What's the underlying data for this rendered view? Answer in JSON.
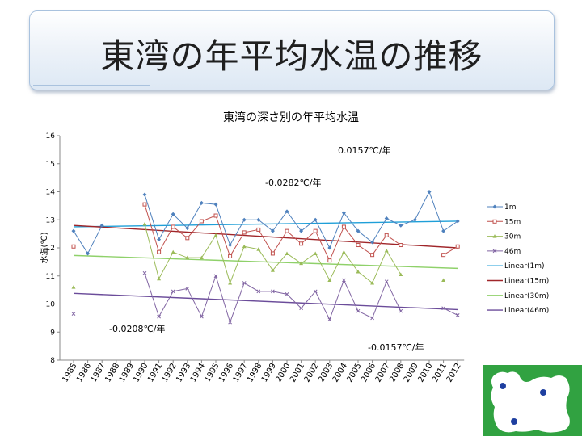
{
  "slide": {
    "title": "東湾の年平均水温の推移"
  },
  "colors": {
    "s1m": "#4f81bd",
    "s15m": "#c0504d",
    "s30m": "#9bbb59",
    "s46m": "#8064a2",
    "l1m": "#1f9fd8",
    "l15m": "#a0262a",
    "l30m": "#8fd16a",
    "l46m": "#6b4c9a"
  },
  "chart_data": {
    "type": "line",
    "title": "東湾の深さ別の年平均水温",
    "ylabel": "水温(℃)",
    "xlabel": "",
    "ylim": [
      8,
      16
    ],
    "yticks": [
      "16",
      "15",
      "14",
      "13",
      "12",
      "11",
      "10",
      "9",
      "8"
    ],
    "x": [
      "1985",
      "1986",
      "1987",
      "1988",
      "1989",
      "1990",
      "1991",
      "1992",
      "1993",
      "1994",
      "1995",
      "1996",
      "1997",
      "1998",
      "1999",
      "2000",
      "2001",
      "2002",
      "2003",
      "2004",
      "2005",
      "2006",
      "2007",
      "2008",
      "2009",
      "2010",
      "2011",
      "2012"
    ],
    "series": [
      {
        "name": "1m",
        "marker": "diamond",
        "values": [
          12.6,
          11.8,
          12.8,
          null,
          null,
          13.9,
          12.3,
          13.2,
          12.7,
          13.6,
          13.55,
          12.1,
          13.0,
          13.0,
          12.6,
          13.3,
          12.6,
          13.0,
          12.0,
          13.25,
          12.6,
          12.2,
          13.05,
          12.8,
          13.0,
          14.0,
          12.6,
          12.95
        ]
      },
      {
        "name": "15m",
        "marker": "square",
        "values": [
          12.05,
          null,
          null,
          null,
          null,
          13.55,
          11.85,
          12.75,
          12.35,
          12.95,
          13.15,
          11.7,
          12.55,
          12.65,
          11.8,
          12.6,
          12.15,
          12.6,
          11.55,
          12.75,
          12.1,
          11.75,
          12.45,
          12.1,
          null,
          null,
          11.75,
          12.05
        ]
      },
      {
        "name": "30m",
        "marker": "triangle",
        "values": [
          10.6,
          null,
          null,
          null,
          null,
          12.85,
          10.9,
          11.85,
          11.65,
          11.65,
          12.45,
          10.75,
          12.05,
          11.95,
          11.2,
          11.8,
          11.45,
          11.8,
          10.85,
          11.85,
          11.15,
          10.75,
          11.9,
          11.05,
          null,
          null,
          10.85,
          null
        ]
      },
      {
        "name": "46m",
        "marker": "x",
        "values": [
          9.65,
          null,
          null,
          null,
          null,
          11.1,
          9.55,
          10.45,
          10.55,
          9.55,
          11.0,
          9.35,
          10.75,
          10.45,
          10.45,
          10.35,
          9.85,
          10.45,
          9.45,
          10.85,
          9.75,
          9.5,
          10.8,
          9.75,
          null,
          null,
          9.85,
          9.6
        ]
      }
    ],
    "trendlines": [
      {
        "name": "Linear(1m)",
        "start": 12.75,
        "end": 12.95,
        "label": "0.0157℃/年"
      },
      {
        "name": "Linear(15m)",
        "start": 12.8,
        "end": 12.0,
        "label": "-0.0282℃/年"
      },
      {
        "name": "Linear(30m)",
        "start": 11.73,
        "end": 11.27
      },
      {
        "name": "Linear(46m)",
        "start": 10.38,
        "end": 9.8
      }
    ],
    "annotations": [
      {
        "id": "ann-1m",
        "text": "0.0157℃/年"
      },
      {
        "id": "ann-15m",
        "text": "-0.0282℃/年"
      },
      {
        "id": "ann-30m",
        "text": "-0.0208℃/年"
      },
      {
        "id": "ann-46m",
        "text": "-0.0157℃/年"
      }
    ],
    "legend": [
      "1m",
      "15m",
      "30m",
      "46m",
      "Linear(1m)",
      "Linear(15m)",
      "Linear(30m)",
      "Linear(46m)"
    ],
    "legend_position": "right",
    "grid": false
  }
}
